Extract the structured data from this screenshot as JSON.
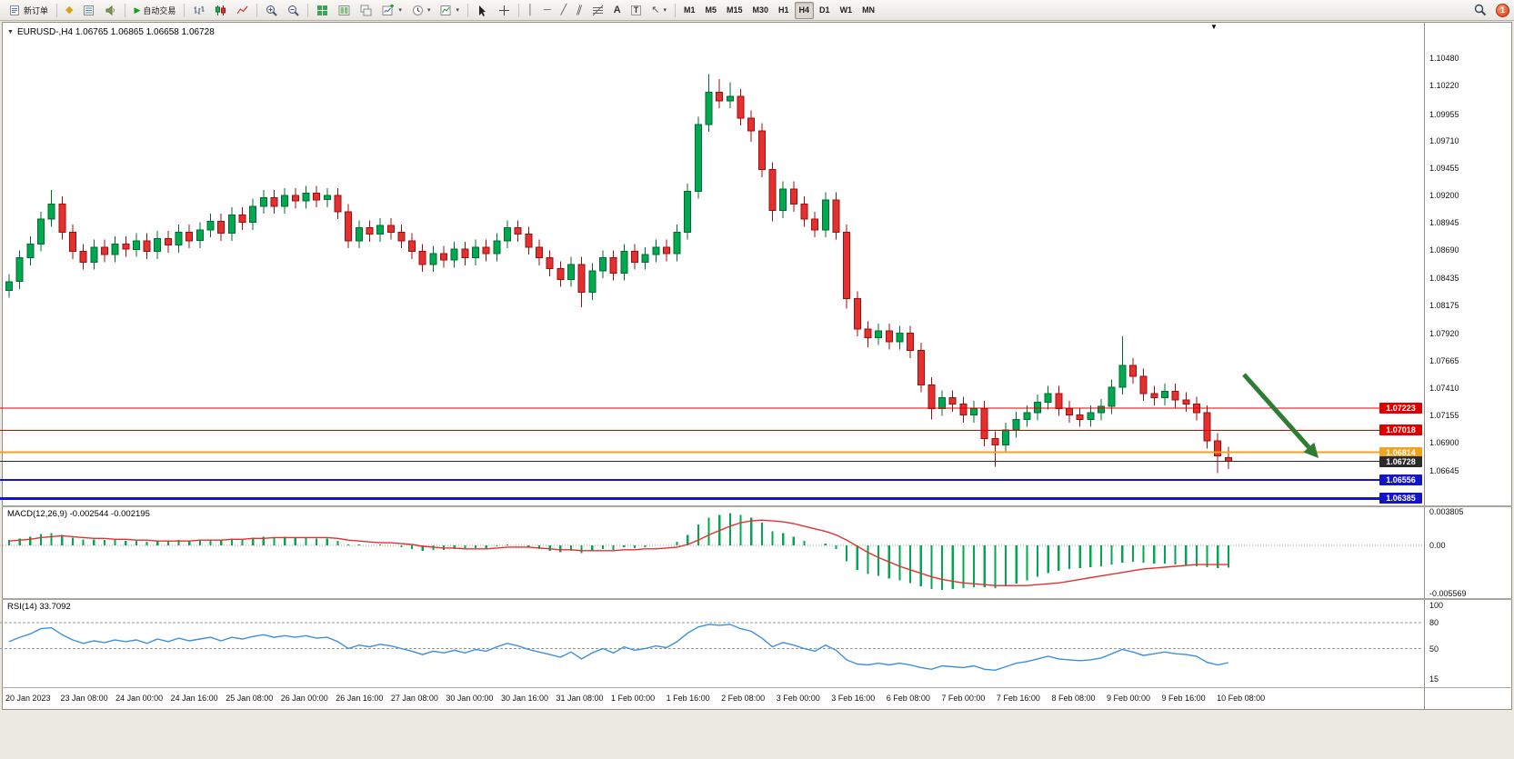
{
  "toolbar": {
    "new_order_label": "新订单",
    "auto_trading_label": "自动交易",
    "timeframes": [
      "M1",
      "M5",
      "M15",
      "M30",
      "H1",
      "H4",
      "D1",
      "W1",
      "MN"
    ],
    "active_timeframe": "H4",
    "notification_count": "1",
    "icons": {
      "mql5": "◆",
      "auto_trading_play": "▶",
      "vline": "│",
      "hline": "─",
      "trendline": "╱",
      "channel": "∥",
      "text": "A",
      "text_label": "T",
      "arrows": "↖",
      "caret": "▾",
      "chart_menu": "▼",
      "shift_marker": "▼"
    }
  },
  "chart": {
    "title": "EURUSD-,H4 1.06765 1.06865 1.06658 1.06728",
    "symbol": "EURUSD-",
    "timeframe": "H4",
    "ohlc_display": {
      "open": "1.06765",
      "high": "1.06865",
      "low": "1.06658",
      "close": "1.06728"
    },
    "price_axis": [
      "1.10480",
      "1.10220",
      "1.09955",
      "1.09710",
      "1.09455",
      "1.09200",
      "1.08945",
      "1.08690",
      "1.08435",
      "1.08175",
      "1.07920",
      "1.07665",
      "1.07410",
      "1.07155",
      "1.06900",
      "1.06645"
    ],
    "levels": [
      {
        "price": "1.07223",
        "color": "#dd0000",
        "width": 1
      },
      {
        "price": "1.07018",
        "color": "#dd0000",
        "width": 1
      },
      {
        "price": "1.06814",
        "color": "#efa323",
        "width": 2
      },
      {
        "price": "1.06728",
        "color": "#2b2b2b",
        "width": 1,
        "current": true
      },
      {
        "price": "1.06556",
        "color": "#1414c8",
        "width": 2
      },
      {
        "price": "1.06385",
        "color": "#1414c8",
        "width": 3
      }
    ],
    "annotation_arrow": {
      "color": "#2e7d32",
      "from": [
        1368,
        412
      ],
      "to": [
        1450,
        504
      ]
    }
  },
  "time_axis": [
    "20 Jan 2023",
    "23 Jan 08:00",
    "24 Jan 00:00",
    "24 Jan 16:00",
    "25 Jan 08:00",
    "26 Jan 00:00",
    "26 Jan 16:00",
    "27 Jan 08:00",
    "30 Jan 00:00",
    "30 Jan 16:00",
    "31 Jan 08:00",
    "1 Feb 00:00",
    "1 Feb 16:00",
    "2 Feb 08:00",
    "3 Feb 00:00",
    "3 Feb 16:00",
    "6 Feb 08:00",
    "7 Feb 00:00",
    "7 Feb 16:00",
    "8 Feb 08:00",
    "9 Feb 00:00",
    "9 Feb 16:00",
    "10 Feb 08:00"
  ],
  "macd": {
    "label": "MACD(12,26,9) -0.002544 -0.002195",
    "value": "-0.002544",
    "signal_value": "-0.002195",
    "axis": [
      "0.003805",
      "0.00",
      "-0.005569"
    ]
  },
  "rsi": {
    "label": "RSI(14) 33.7092",
    "value": "33.7092",
    "axis": [
      "100",
      "80",
      "50",
      "15"
    ],
    "levels": [
      80,
      50
    ]
  },
  "chart_data": [
    {
      "type": "candlestick",
      "title": "EURUSD- H4",
      "ylim": [
        1.0632,
        1.1078
      ],
      "colors": {
        "bull": "#00a84f",
        "bull_stroke": "#006b32",
        "bear": "#e53030",
        "bear_stroke": "#9c0f0f"
      },
      "x_labels": [
        "20 Jan 2023",
        "23 Jan 08:00",
        "24 Jan 00:00",
        "24 Jan 16:00",
        "25 Jan 08:00",
        "26 Jan 00:00",
        "26 Jan 16:00",
        "27 Jan 08:00",
        "30 Jan 00:00",
        "30 Jan 16:00",
        "31 Jan 08:00",
        "1 Feb 00:00",
        "1 Feb 16:00",
        "2 Feb 08:00",
        "3 Feb 00:00",
        "3 Feb 16:00",
        "6 Feb 08:00",
        "7 Feb 00:00",
        "7 Feb 16:00",
        "8 Feb 08:00",
        "9 Feb 00:00",
        "9 Feb 16:00",
        "10 Feb 08:00"
      ],
      "ohlc": [
        [
          1.0832,
          1.0847,
          1.0825,
          1.084
        ],
        [
          1.084,
          1.0869,
          1.0833,
          1.0862
        ],
        [
          1.0862,
          1.0882,
          1.0855,
          1.0875
        ],
        [
          1.0875,
          1.0905,
          1.0868,
          1.0898
        ],
        [
          1.0898,
          1.0925,
          1.0891,
          1.0912
        ],
        [
          1.0912,
          1.0919,
          1.0879,
          1.0886
        ],
        [
          1.0886,
          1.0893,
          1.0861,
          1.0868
        ],
        [
          1.0868,
          1.0875,
          1.0851,
          1.0858
        ],
        [
          1.0858,
          1.0879,
          1.0851,
          1.0872
        ],
        [
          1.0872,
          1.0879,
          1.0858,
          1.0865
        ],
        [
          1.0865,
          1.0882,
          1.0858,
          1.0875
        ],
        [
          1.0875,
          1.0882,
          1.0863,
          1.087
        ],
        [
          1.087,
          1.0885,
          1.0863,
          1.0878
        ],
        [
          1.0878,
          1.0885,
          1.0861,
          1.0868
        ],
        [
          1.0868,
          1.0887,
          1.0861,
          1.088
        ],
        [
          1.088,
          1.0887,
          1.0867,
          1.0874
        ],
        [
          1.0874,
          1.0893,
          1.0867,
          1.0886
        ],
        [
          1.0886,
          1.0893,
          1.0871,
          1.0878
        ],
        [
          1.0878,
          1.0895,
          1.0871,
          1.0888
        ],
        [
          1.0888,
          1.0903,
          1.0881,
          1.0896
        ],
        [
          1.0896,
          1.0903,
          1.0878,
          1.0885
        ],
        [
          1.0885,
          1.0909,
          1.0878,
          1.0902
        ],
        [
          1.0902,
          1.0909,
          1.0888,
          1.0895
        ],
        [
          1.0895,
          1.0917,
          1.0888,
          1.091
        ],
        [
          1.091,
          1.0925,
          1.0903,
          1.0918
        ],
        [
          1.0918,
          1.0925,
          1.0903,
          1.091
        ],
        [
          1.091,
          1.0927,
          1.0903,
          1.092
        ],
        [
          1.092,
          1.0927,
          1.0908,
          1.0915
        ],
        [
          1.0915,
          1.0929,
          1.0908,
          1.0922
        ],
        [
          1.0922,
          1.0929,
          1.0909,
          1.0916
        ],
        [
          1.0916,
          1.0927,
          1.0909,
          1.092
        ],
        [
          1.092,
          1.0927,
          1.0898,
          1.0905
        ],
        [
          1.0905,
          1.0912,
          1.0871,
          1.0878
        ],
        [
          1.0878,
          1.0897,
          1.0871,
          1.089
        ],
        [
          1.089,
          1.0897,
          1.0877,
          1.0884
        ],
        [
          1.0884,
          1.0899,
          1.0877,
          1.0892
        ],
        [
          1.0892,
          1.0899,
          1.0879,
          1.0886
        ],
        [
          1.0886,
          1.0893,
          1.0871,
          1.0878
        ],
        [
          1.0878,
          1.0885,
          1.0861,
          1.0868
        ],
        [
          1.0868,
          1.0875,
          1.0849,
          1.0856
        ],
        [
          1.0856,
          1.0873,
          1.0849,
          1.0866
        ],
        [
          1.0866,
          1.0873,
          1.0853,
          1.086
        ],
        [
          1.086,
          1.0877,
          1.0853,
          1.087
        ],
        [
          1.087,
          1.0877,
          1.0855,
          1.0862
        ],
        [
          1.0862,
          1.0879,
          1.0855,
          1.0872
        ],
        [
          1.0872,
          1.0879,
          1.0859,
          1.0866
        ],
        [
          1.0866,
          1.0885,
          1.0859,
          1.0878
        ],
        [
          1.0878,
          1.0897,
          1.0871,
          1.089
        ],
        [
          1.089,
          1.0897,
          1.0877,
          1.0884
        ],
        [
          1.0884,
          1.0891,
          1.0865,
          1.0872
        ],
        [
          1.0872,
          1.0879,
          1.0855,
          1.0862
        ],
        [
          1.0862,
          1.0869,
          1.0845,
          1.0852
        ],
        [
          1.0852,
          1.0859,
          1.0835,
          1.0842
        ],
        [
          1.0842,
          1.0863,
          1.0835,
          1.0856
        ],
        [
          1.0856,
          1.0863,
          1.0816,
          1.083
        ],
        [
          1.083,
          1.0857,
          1.0823,
          1.085
        ],
        [
          1.085,
          1.0869,
          1.0843,
          1.0862
        ],
        [
          1.0862,
          1.0869,
          1.0841,
          1.0848
        ],
        [
          1.0848,
          1.0875,
          1.0841,
          1.0868
        ],
        [
          1.0868,
          1.0875,
          1.0851,
          1.0858
        ],
        [
          1.0858,
          1.0872,
          1.0851,
          1.0865
        ],
        [
          1.0865,
          1.0879,
          1.0858,
          1.0872
        ],
        [
          1.0872,
          1.0879,
          1.0859,
          1.0866
        ],
        [
          1.0866,
          1.0893,
          1.0859,
          1.0886
        ],
        [
          1.0886,
          1.0931,
          1.0879,
          1.0924
        ],
        [
          1.0924,
          1.0993,
          1.0917,
          1.0986
        ],
        [
          1.0986,
          1.1033,
          1.0979,
          1.1016
        ],
        [
          1.1016,
          1.1028,
          1.1001,
          1.1008
        ],
        [
          1.1008,
          1.1025,
          1.1001,
          1.1012
        ],
        [
          1.1012,
          1.1019,
          1.0985,
          1.0992
        ],
        [
          1.0992,
          1.0999,
          1.097,
          1.098
        ],
        [
          1.098,
          1.0987,
          1.0937,
          1.0944
        ],
        [
          1.0944,
          1.0951,
          1.0896,
          1.0906
        ],
        [
          1.0906,
          1.0933,
          1.0899,
          1.0926
        ],
        [
          1.0926,
          1.0933,
          1.0905,
          1.0912
        ],
        [
          1.0912,
          1.0919,
          1.0891,
          1.0898
        ],
        [
          1.0898,
          1.0905,
          1.0881,
          1.0888
        ],
        [
          1.0888,
          1.0923,
          1.0881,
          1.0916
        ],
        [
          1.0916,
          1.0923,
          1.0879,
          1.0886
        ],
        [
          1.0886,
          1.0893,
          1.0815,
          1.0824
        ],
        [
          1.0824,
          1.0831,
          1.0789,
          1.0796
        ],
        [
          1.0796,
          1.0803,
          1.0779,
          1.0788
        ],
        [
          1.0788,
          1.0801,
          1.0781,
          1.0794
        ],
        [
          1.0794,
          1.0801,
          1.0777,
          1.0784
        ],
        [
          1.0784,
          1.0799,
          1.0777,
          1.0792
        ],
        [
          1.0792,
          1.0799,
          1.0769,
          1.0776
        ],
        [
          1.0776,
          1.0783,
          1.0737,
          1.0744
        ],
        [
          1.0744,
          1.0751,
          1.0712,
          1.0722
        ],
        [
          1.0722,
          1.0739,
          1.0715,
          1.0732
        ],
        [
          1.0732,
          1.0739,
          1.0719,
          1.0726
        ],
        [
          1.0726,
          1.0733,
          1.0709,
          1.0716
        ],
        [
          1.0716,
          1.0729,
          1.0709,
          1.0722
        ],
        [
          1.0722,
          1.0729,
          1.0687,
          1.0694
        ],
        [
          1.0694,
          1.0701,
          1.0668,
          1.0688
        ],
        [
          1.0688,
          1.0709,
          1.0681,
          1.0702
        ],
        [
          1.0702,
          1.0719,
          1.0695,
          1.0712
        ],
        [
          1.0712,
          1.0725,
          1.0705,
          1.0718
        ],
        [
          1.0718,
          1.0735,
          1.0711,
          1.0728
        ],
        [
          1.0728,
          1.0743,
          1.0721,
          1.0736
        ],
        [
          1.0736,
          1.0743,
          1.0715,
          1.0722
        ],
        [
          1.0722,
          1.0729,
          1.0709,
          1.0716
        ],
        [
          1.0716,
          1.0723,
          1.0705,
          1.0712
        ],
        [
          1.0712,
          1.0725,
          1.0705,
          1.0718
        ],
        [
          1.0718,
          1.0731,
          1.0711,
          1.0724
        ],
        [
          1.0724,
          1.0749,
          1.0717,
          1.0742
        ],
        [
          1.0742,
          1.0789,
          1.0735,
          1.0762
        ],
        [
          1.0762,
          1.0769,
          1.0745,
          1.0752
        ],
        [
          1.0752,
          1.0759,
          1.0729,
          1.0736
        ],
        [
          1.0736,
          1.0743,
          1.0725,
          1.0732
        ],
        [
          1.0732,
          1.0745,
          1.0725,
          1.0738
        ],
        [
          1.0738,
          1.0745,
          1.0723,
          1.073
        ],
        [
          1.073,
          1.0737,
          1.0719,
          1.0726
        ],
        [
          1.0726,
          1.0733,
          1.0711,
          1.0718
        ],
        [
          1.0718,
          1.0725,
          1.0685,
          1.0692
        ],
        [
          1.0692,
          1.0699,
          1.0662,
          1.0678
        ],
        [
          1.06765,
          1.06865,
          1.06658,
          1.06728
        ]
      ]
    },
    {
      "type": "bar",
      "name": "MACD histogram",
      "color": "#00a84f",
      "ylim": [
        -0.006,
        0.0042
      ],
      "values": [
        0.0006,
        0.0008,
        0.001,
        0.0013,
        0.0014,
        0.0012,
        0.0009,
        0.0007,
        0.0007,
        0.0006,
        0.0006,
        0.0005,
        0.0005,
        0.0004,
        0.0005,
        0.0005,
        0.0006,
        0.0005,
        0.0006,
        0.0007,
        0.0006,
        0.0008,
        0.0007,
        0.0009,
        0.001,
        0.0009,
        0.001,
        0.0009,
        0.0009,
        0.0008,
        0.0008,
        0.0005,
        0.0001,
        0.0001,
        0.0,
        0.0001,
        0.0,
        -0.0002,
        -0.0004,
        -0.0006,
        -0.0005,
        -0.0005,
        -0.0004,
        -0.0004,
        -0.0003,
        -0.0003,
        -0.0001,
        0.0001,
        0.0,
        -0.0002,
        -0.0004,
        -0.0006,
        -0.0008,
        -0.0006,
        -0.0009,
        -0.0007,
        -0.0004,
        -0.0005,
        -0.0002,
        -0.0003,
        -0.0002,
        0.0,
        0.0,
        0.0004,
        0.0012,
        0.0024,
        0.0032,
        0.0035,
        0.0037,
        0.0035,
        0.0032,
        0.0026,
        0.0016,
        0.0014,
        0.001,
        0.0005,
        0.0,
        0.0002,
        -0.0004,
        -0.0018,
        -0.0028,
        -0.0033,
        -0.0035,
        -0.0038,
        -0.004,
        -0.0043,
        -0.0047,
        -0.005,
        -0.0051,
        -0.005,
        -0.0049,
        -0.0048,
        -0.0048,
        -0.0049,
        -0.0047,
        -0.0044,
        -0.004,
        -0.0036,
        -0.0032,
        -0.0029,
        -0.0027,
        -0.0026,
        -0.0025,
        -0.0024,
        -0.0022,
        -0.002,
        -0.0019,
        -0.002,
        -0.0021,
        -0.0021,
        -0.0022,
        -0.0023,
        -0.0024,
        -0.0025,
        -0.0026,
        -0.002544
      ]
    },
    {
      "type": "line",
      "name": "MACD signal",
      "color": "#e53030",
      "values": [
        0.0005,
        0.0006,
        0.0007,
        0.0009,
        0.001,
        0.0011,
        0.001,
        0.0009,
        0.0008,
        0.0008,
        0.0007,
        0.0007,
        0.0006,
        0.0006,
        0.0005,
        0.0005,
        0.0005,
        0.0005,
        0.0006,
        0.0006,
        0.0006,
        0.0007,
        0.0007,
        0.0008,
        0.0008,
        0.0009,
        0.0009,
        0.0009,
        0.0009,
        0.0009,
        0.0009,
        0.0008,
        0.0006,
        0.0005,
        0.0004,
        0.0003,
        0.0003,
        0.0002,
        0.0001,
        -0.0001,
        -0.0002,
        -0.0003,
        -0.0003,
        -0.0004,
        -0.0004,
        -0.0004,
        -0.0003,
        -0.0002,
        -0.0002,
        -0.0002,
        -0.0003,
        -0.0004,
        -0.0005,
        -0.0005,
        -0.0006,
        -0.0006,
        -0.0006,
        -0.0006,
        -0.0005,
        -0.0005,
        -0.0004,
        -0.0004,
        -0.0003,
        -0.0002,
        0.0001,
        0.0006,
        0.0012,
        0.0017,
        0.0022,
        0.0026,
        0.0028,
        0.0029,
        0.0028,
        0.0027,
        0.0025,
        0.0022,
        0.0019,
        0.0016,
        0.0012,
        0.0006,
        -0.0001,
        -0.0008,
        -0.0014,
        -0.0019,
        -0.0024,
        -0.0028,
        -0.0032,
        -0.0036,
        -0.0039,
        -0.0041,
        -0.0043,
        -0.0044,
        -0.0045,
        -0.0046,
        -0.0046,
        -0.0046,
        -0.0046,
        -0.0045,
        -0.0044,
        -0.0043,
        -0.0041,
        -0.0039,
        -0.0037,
        -0.0035,
        -0.0033,
        -0.0031,
        -0.0029,
        -0.0027,
        -0.0026,
        -0.0025,
        -0.0024,
        -0.0023,
        -0.0022,
        -0.0022,
        -0.0022,
        -0.002195
      ]
    },
    {
      "type": "line",
      "name": "RSI(14)",
      "color": "#3d8fe0",
      "ylim": [
        15,
        100
      ],
      "values": [
        58,
        63,
        67,
        73,
        74,
        66,
        60,
        56,
        59,
        57,
        60,
        58,
        60,
        56,
        61,
        58,
        62,
        59,
        61,
        63,
        59,
        63,
        61,
        64,
        66,
        63,
        65,
        63,
        65,
        62,
        63,
        58,
        50,
        54,
        52,
        55,
        53,
        50,
        47,
        43,
        47,
        45,
        48,
        45,
        49,
        47,
        52,
        56,
        53,
        49,
        46,
        43,
        40,
        46,
        38,
        45,
        50,
        45,
        52,
        48,
        50,
        53,
        51,
        58,
        68,
        75,
        78,
        77,
        78,
        73,
        70,
        62,
        52,
        57,
        54,
        50,
        47,
        54,
        48,
        37,
        32,
        31,
        33,
        31,
        33,
        31,
        28,
        26,
        30,
        29,
        28,
        30,
        26,
        25,
        29,
        33,
        35,
        38,
        41,
        38,
        37,
        36,
        37,
        39,
        44,
        49,
        46,
        42,
        44,
        46,
        44,
        43,
        41,
        34,
        31,
        33.7
      ]
    }
  ]
}
